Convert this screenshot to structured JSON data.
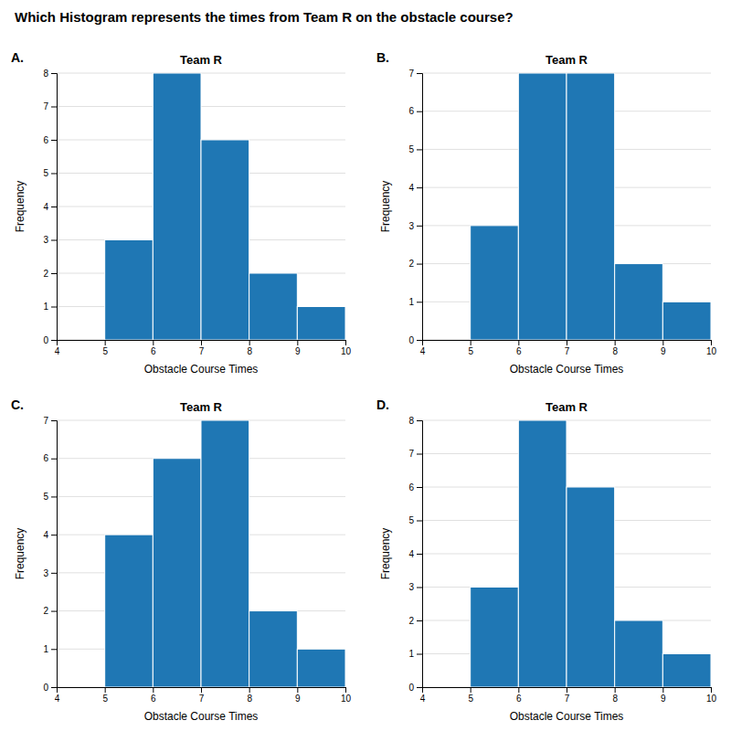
{
  "title": "Which Histogram represents the times from Team R on the obstacle course?",
  "chart_data": [
    {
      "type": "histogram",
      "title": "Team R",
      "annotations": [
        "A."
      ],
      "xlabel": "Obstacle Course Times",
      "ylabel": "Frequency",
      "bins": [
        5,
        6,
        7,
        8,
        9,
        10
      ],
      "values": [
        3,
        8,
        6,
        2,
        1
      ],
      "xlim": [
        4,
        10
      ],
      "xticks": [
        4,
        5,
        6,
        7,
        8,
        9,
        10
      ],
      "ylim": [
        0,
        8
      ],
      "yticks": [
        0,
        1,
        2,
        3,
        4,
        5,
        6,
        7,
        8
      ],
      "grid": true
    },
    {
      "type": "histogram",
      "title": "Team R",
      "annotations": [
        "B."
      ],
      "xlabel": "Obstacle Course Times",
      "ylabel": "Frequency",
      "bins": [
        5,
        6,
        7,
        8,
        9,
        10
      ],
      "values": [
        3,
        7,
        7,
        2,
        1
      ],
      "xlim": [
        4,
        10
      ],
      "xticks": [
        4,
        5,
        6,
        7,
        8,
        9,
        10
      ],
      "ylim": [
        0,
        7
      ],
      "yticks": [
        0,
        1,
        2,
        3,
        4,
        5,
        6,
        7
      ],
      "grid": true
    },
    {
      "type": "histogram",
      "title": "Team R",
      "annotations": [
        "C."
      ],
      "xlabel": "Obstacle Course Times",
      "ylabel": "Frequency",
      "bins": [
        5,
        6,
        7,
        8,
        9,
        10
      ],
      "values": [
        4,
        6,
        7,
        2,
        1
      ],
      "xlim": [
        4,
        10
      ],
      "xticks": [
        4,
        5,
        6,
        7,
        8,
        9,
        10
      ],
      "ylim": [
        0,
        7
      ],
      "yticks": [
        0,
        1,
        2,
        3,
        4,
        5,
        6,
        7
      ],
      "grid": true
    },
    {
      "type": "histogram",
      "title": "Team R",
      "annotations": [
        "D."
      ],
      "xlabel": "Obstacle Course Times",
      "ylabel": "Frequency",
      "bins": [
        5,
        6,
        7,
        8,
        9,
        10
      ],
      "values": [
        3,
        8,
        6,
        2,
        1
      ],
      "xlim": [
        4,
        10
      ],
      "xticks": [
        4,
        5,
        6,
        7,
        8,
        9,
        10
      ],
      "ylim": [
        0,
        8
      ],
      "yticks": [
        0,
        1,
        2,
        3,
        4,
        5,
        6,
        7,
        8
      ],
      "grid": true
    }
  ]
}
